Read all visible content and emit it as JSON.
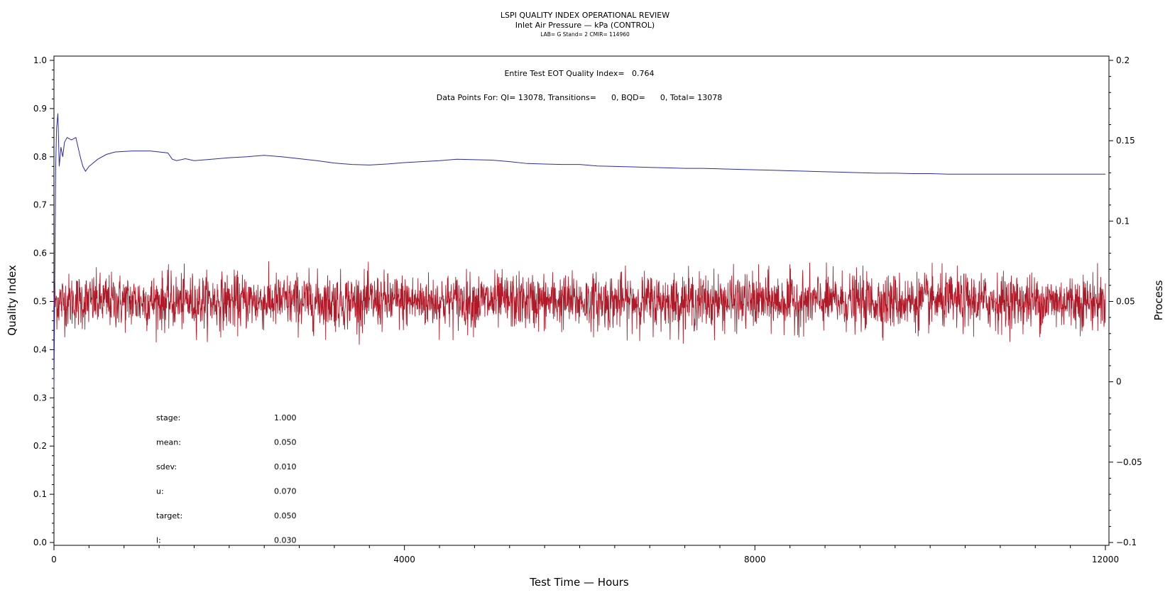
{
  "chart_data": {
    "type": "line",
    "title": "LSPI QUALITY INDEX OPERATIONAL REVIEW",
    "subtitle": "Inlet Air Pressure — kPa (CONTROL)",
    "subtitle2": "LAB= G Stand= 2 CMIR= 114960",
    "xlabel": "Test Time — Hours",
    "ylabel": "Quality Index",
    "y2label": "Process",
    "xlim": [
      0,
      12000
    ],
    "ylim": [
      0,
      1.0
    ],
    "y2lim": [
      -0.1,
      0.2
    ],
    "x_ticks": [
      "0",
      "4000",
      "8000",
      "12000"
    ],
    "y_ticks": [
      "0.0",
      "0.1",
      "0.2",
      "0.3",
      "0.4",
      "0.5",
      "0.6",
      "0.7",
      "0.8",
      "0.9",
      "1.0"
    ],
    "y2_ticks": [
      "−0.1",
      "−0.05",
      "0",
      "0.05",
      "0.1",
      "0.15",
      "0.2"
    ],
    "annotations": {
      "eot": "Entire Test EOT Quality Index=   0.764",
      "points": "Data Points For: QI= 13078, Transitions=      0, BQD=      0, Total= 13078"
    },
    "stats": [
      {
        "label": "stage:",
        "value": "1.000"
      },
      {
        "label": "mean:",
        "value": "0.050"
      },
      {
        "label": "sdev:",
        "value": "0.010"
      },
      {
        "label": "u:",
        "value": "0.070"
      },
      {
        "label": "target:",
        "value": "0.050"
      },
      {
        "label": "l:",
        "value": "0.030"
      }
    ],
    "series": [
      {
        "axis": "left",
        "color": "#2b2ba8",
        "x": [
          0,
          10,
          20,
          30,
          45,
          60,
          80,
          100,
          120,
          150,
          200,
          250,
          300,
          330,
          360,
          400,
          500,
          600,
          700,
          900,
          1100,
          1300,
          1350,
          1400,
          1500,
          1600,
          1800,
          2000,
          2200,
          2400,
          2600,
          2800,
          3000,
          3200,
          3400,
          3600,
          3800,
          4000,
          4200,
          4400,
          4600,
          4800,
          5000,
          5200,
          5400,
          5600,
          5800,
          6000,
          6200,
          6400,
          6600,
          6800,
          7000,
          7200,
          7400,
          7600,
          7800,
          8000,
          8200,
          8400,
          8600,
          8800,
          9000,
          9200,
          9400,
          9600,
          9800,
          10000,
          10200,
          10400,
          10600,
          10800,
          11000,
          11200,
          11400,
          11600,
          11800,
          12000
        ],
        "values": [
          0.32,
          0.55,
          0.78,
          0.86,
          0.89,
          0.78,
          0.82,
          0.8,
          0.83,
          0.84,
          0.835,
          0.84,
          0.8,
          0.78,
          0.77,
          0.78,
          0.795,
          0.805,
          0.81,
          0.812,
          0.812,
          0.808,
          0.795,
          0.792,
          0.796,
          0.792,
          0.795,
          0.798,
          0.8,
          0.803,
          0.8,
          0.796,
          0.792,
          0.787,
          0.784,
          0.783,
          0.785,
          0.788,
          0.79,
          0.792,
          0.795,
          0.794,
          0.793,
          0.79,
          0.786,
          0.785,
          0.784,
          0.784,
          0.781,
          0.78,
          0.779,
          0.778,
          0.777,
          0.776,
          0.776,
          0.775,
          0.774,
          0.773,
          0.772,
          0.771,
          0.77,
          0.769,
          0.768,
          0.767,
          0.766,
          0.766,
          0.765,
          0.765,
          0.764,
          0.764,
          0.764,
          0.764,
          0.764,
          0.764,
          0.764,
          0.764,
          0.764,
          0.764
        ]
      },
      {
        "axis": "right",
        "color": "#b01a28",
        "x_range": [
          0,
          12000
        ],
        "points": 13078,
        "mean": 0.05,
        "sdev": 0.01
      }
    ]
  }
}
